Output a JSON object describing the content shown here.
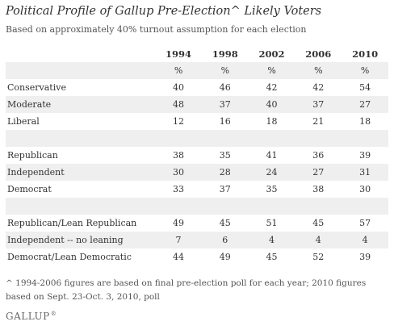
{
  "chart_data": {
    "type": "table",
    "title": "Political Profile of Gallup Pre-Election^ Likely Voters",
    "subtitle": "Based on approximately 40% turnout assumption for each election",
    "columns": [
      "1994",
      "1998",
      "2002",
      "2006",
      "2010"
    ],
    "units_row": [
      "%",
      "%",
      "%",
      "%",
      "%"
    ],
    "groups": [
      {
        "rows": [
          {
            "label": "Conservative",
            "values": [
              40,
              46,
              42,
              42,
              54
            ]
          },
          {
            "label": "Moderate",
            "values": [
              48,
              37,
              40,
              37,
              27
            ]
          },
          {
            "label": "Liberal",
            "values": [
              12,
              16,
              18,
              21,
              18
            ]
          }
        ]
      },
      {
        "rows": [
          {
            "label": "Republican",
            "values": [
              38,
              35,
              41,
              36,
              39
            ]
          },
          {
            "label": "Independent",
            "values": [
              30,
              28,
              24,
              27,
              31
            ]
          },
          {
            "label": "Democrat",
            "values": [
              33,
              37,
              35,
              38,
              30
            ]
          }
        ]
      },
      {
        "rows": [
          {
            "label": "Republican/Lean Republican",
            "values": [
              49,
              45,
              51,
              45,
              57
            ]
          },
          {
            "label": "Independent -- no leaning",
            "values": [
              7,
              6,
              4,
              4,
              4
            ]
          },
          {
            "label": "Democrat/Lean Democratic",
            "values": [
              44,
              49,
              45,
              52,
              39
            ]
          }
        ]
      }
    ],
    "footnote": "^ 1994-2006 figures are based on final pre-election poll for each year; 2010 figures based on Sept. 23-Oct. 3, 2010, poll",
    "source": "GALLUP",
    "source_mark": "®"
  }
}
